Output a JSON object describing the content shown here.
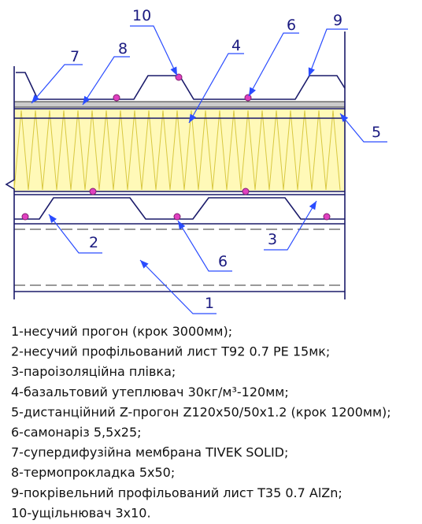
{
  "callouts": [
    {
      "label": "10"
    },
    {
      "label": "6"
    },
    {
      "label": "9"
    },
    {
      "label": "7"
    },
    {
      "label": "8"
    },
    {
      "label": "4"
    },
    {
      "label": "5"
    },
    {
      "label": "2"
    },
    {
      "label": "6"
    },
    {
      "label": "3"
    },
    {
      "label": "1"
    }
  ],
  "legend": [
    "1-несучий прогон (крок 3000мм);",
    "2-несучий профільований лист Т92 0.7 PE 15мк;",
    "3-пароізоляційна плівка;",
    "4-базальтовий утеплювач 30кг/м³-120мм;",
    "5-дистанційний Z-прогон Z120x50/50x1.2 (крок 1200мм);",
    "6-самонаріз 5,5x25;",
    "7-супердифузійна мембрана TIVEK SOLID;",
    "8-термопрокладка 5x50;",
    "9-покрівельний профільований лист Т35 0.7 AlZn;",
    "10-ущільнювач 3x10."
  ]
}
